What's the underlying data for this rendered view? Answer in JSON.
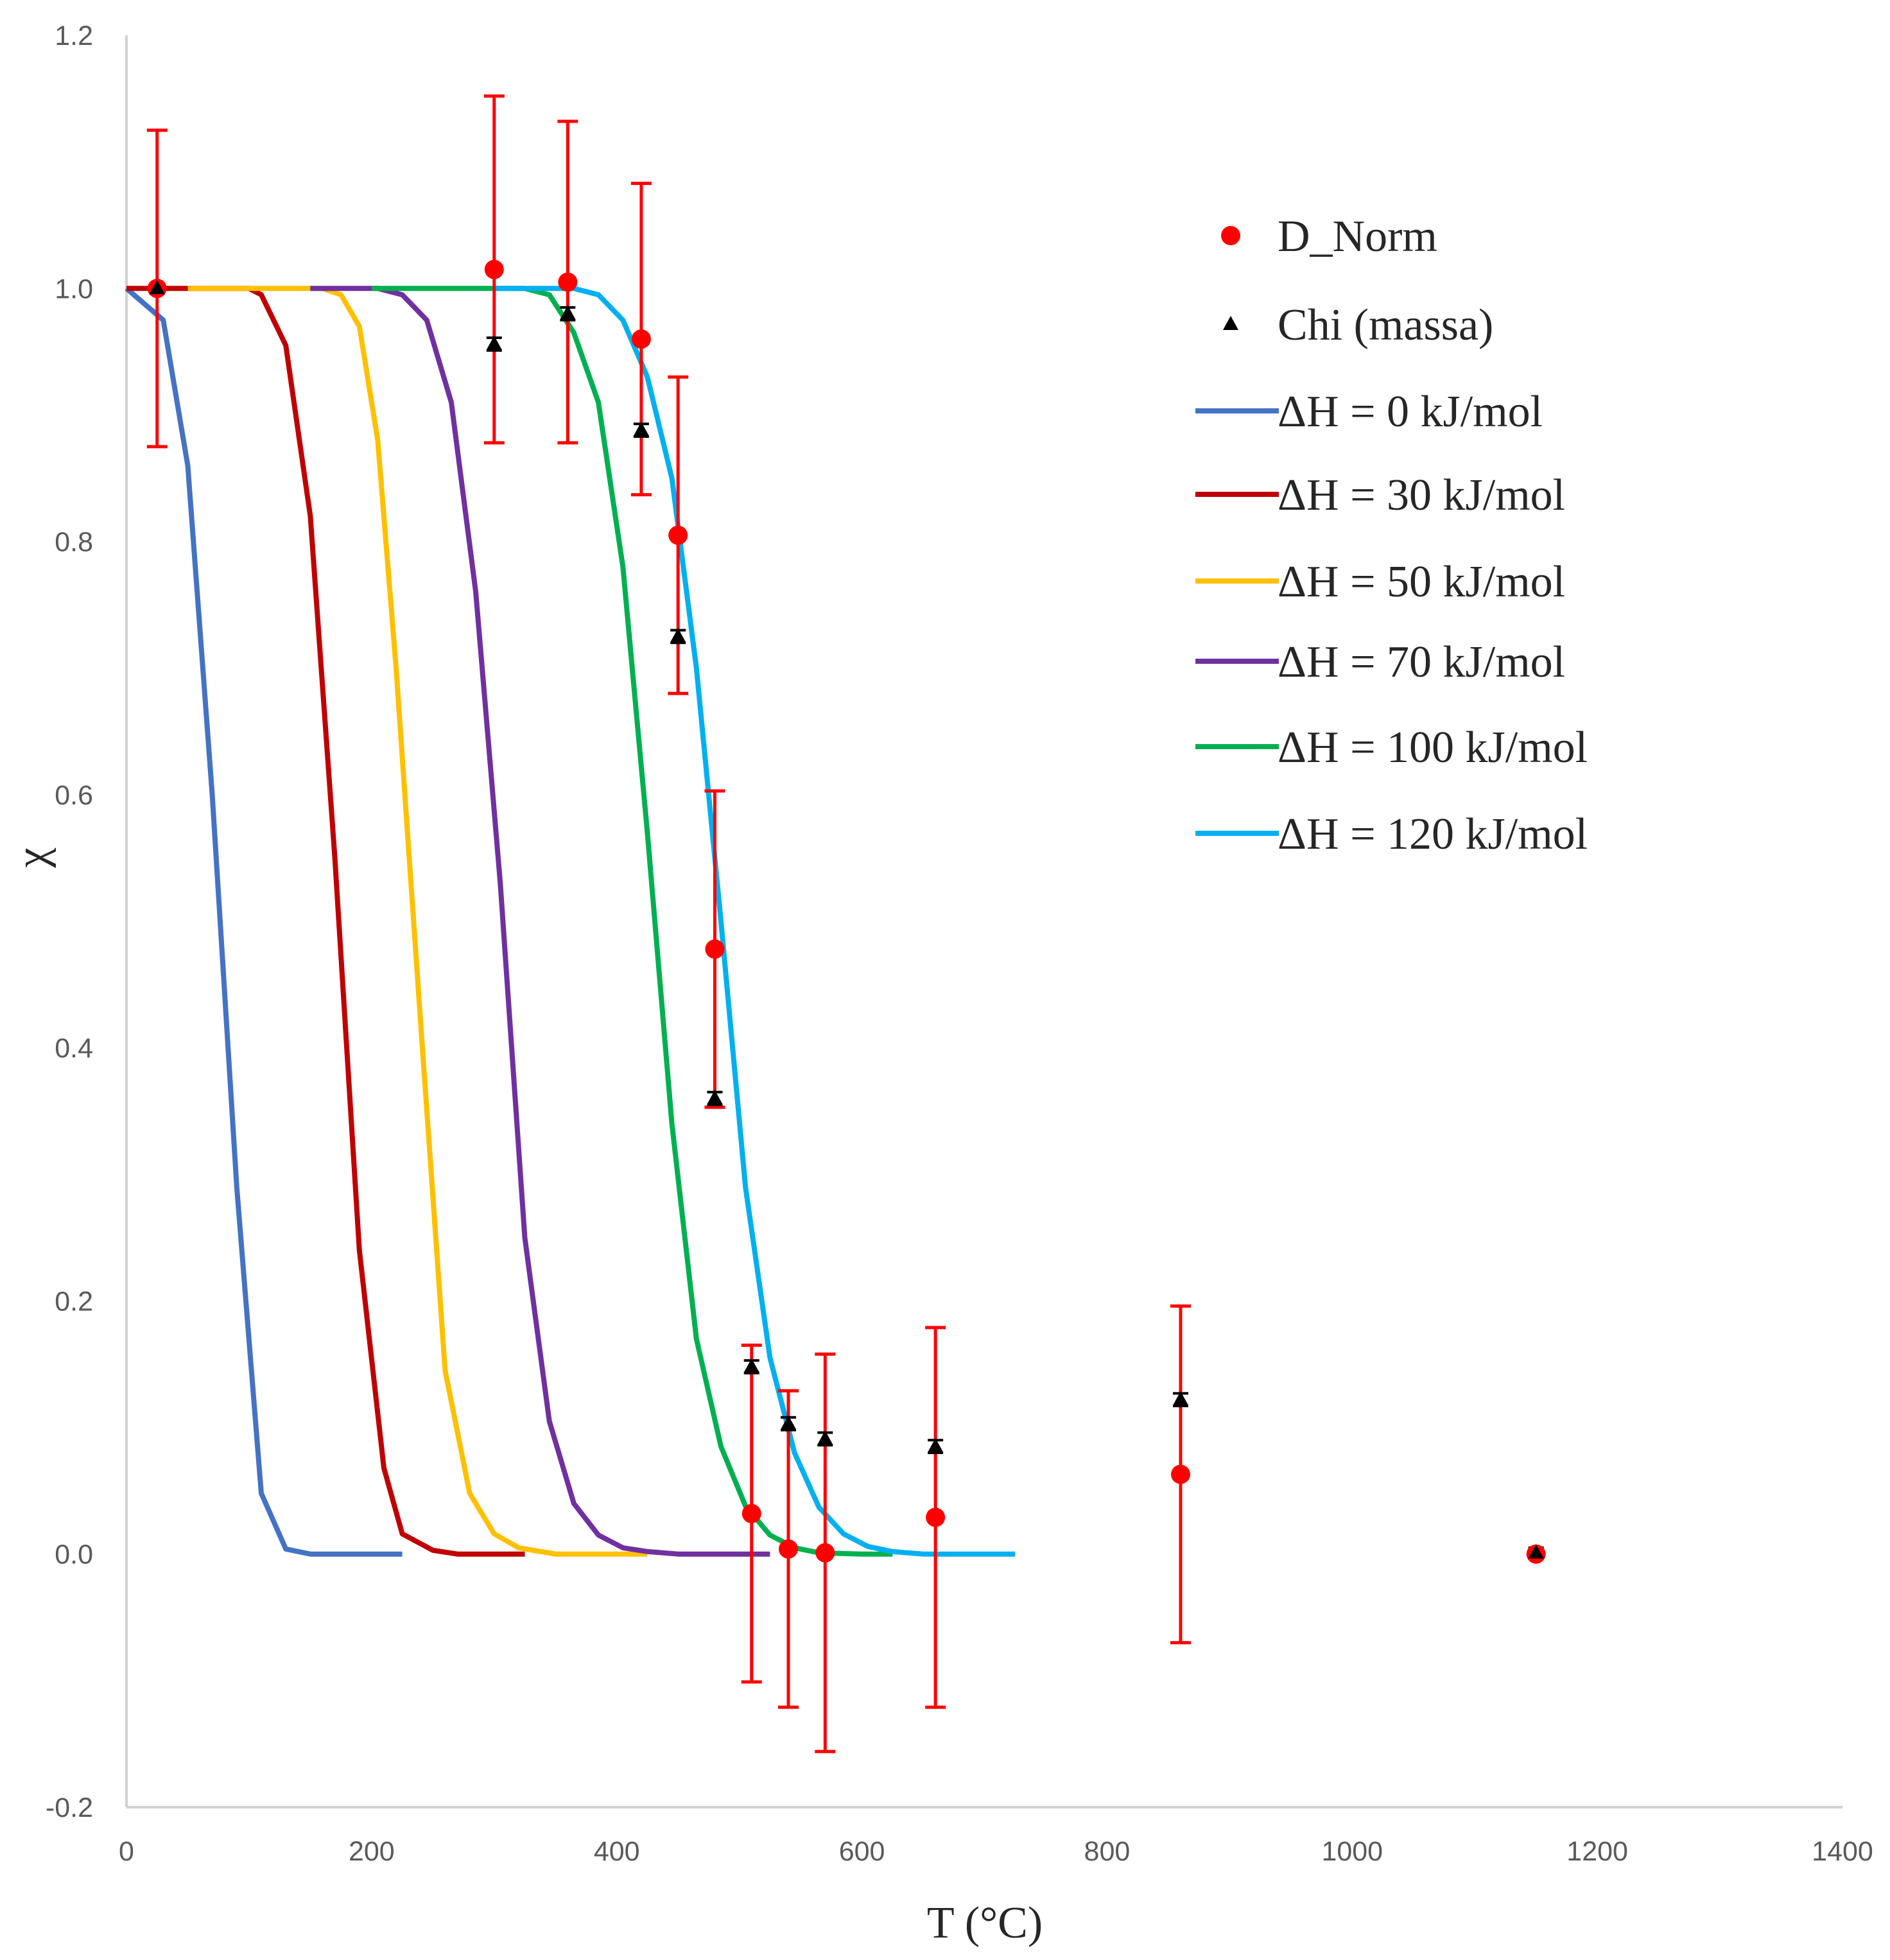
{
  "chart_data": {
    "type": "scatter",
    "title": "",
    "xlabel": "T (°C)",
    "ylabel": "χ",
    "xlim": [
      0,
      1400
    ],
    "ylim": [
      -0.2,
      1.2
    ],
    "xticks": [
      0,
      200,
      400,
      600,
      800,
      1000,
      1200,
      1400
    ],
    "xtick_labels": [
      "0",
      "200",
      "400",
      "600",
      "800",
      "1000",
      "1200",
      "1400"
    ],
    "yticks": [
      -0.2,
      0.0,
      0.2,
      0.4,
      0.6,
      0.8,
      1.0,
      1.2
    ],
    "ytick_labels": [
      "-0.2",
      "0.0",
      "0.2",
      "0.4",
      "0.6",
      "0.8",
      "1.0",
      "1.2"
    ],
    "grid": false,
    "legend_position": "right",
    "scatter_series": [
      {
        "name": "D_Norm",
        "marker": "circle",
        "color": "#ff0000",
        "points": [
          {
            "x": 25,
            "y": 1.0,
            "err": 0.125
          },
          {
            "x": 300,
            "y": 1.015,
            "err": 0.137
          },
          {
            "x": 360,
            "y": 1.005,
            "err": 0.127
          },
          {
            "x": 420,
            "y": 0.96,
            "err": 0.123
          },
          {
            "x": 450,
            "y": 0.805,
            "err": 0.125
          },
          {
            "x": 480,
            "y": 0.478,
            "err": 0.125
          },
          {
            "x": 510,
            "y": 0.032,
            "err": 0.133
          },
          {
            "x": 540,
            "y": 0.004,
            "err": 0.125
          },
          {
            "x": 570,
            "y": 0.001,
            "err": 0.157
          },
          {
            "x": 660,
            "y": 0.029,
            "err": 0.15
          },
          {
            "x": 860,
            "y": 0.063,
            "err": 0.133
          },
          {
            "x": 1150,
            "y": 0.0,
            "err": 0.0
          }
        ]
      },
      {
        "name": "Chi (massa)",
        "marker": "triangle",
        "color": "#000000",
        "points": [
          {
            "x": 25,
            "y": 1.0,
            "err": 0.004
          },
          {
            "x": 300,
            "y": 0.956,
            "err": 0.005
          },
          {
            "x": 360,
            "y": 0.98,
            "err": 0.005
          },
          {
            "x": 420,
            "y": 0.888,
            "err": 0.005
          },
          {
            "x": 450,
            "y": 0.725,
            "err": 0.005
          },
          {
            "x": 480,
            "y": 0.36,
            "err": 0.005
          },
          {
            "x": 510,
            "y": 0.148,
            "err": 0.005
          },
          {
            "x": 540,
            "y": 0.103,
            "err": 0.005
          },
          {
            "x": 570,
            "y": 0.091,
            "err": 0.005
          },
          {
            "x": 660,
            "y": 0.085,
            "err": 0.005
          },
          {
            "x": 860,
            "y": 0.122,
            "err": 0.005
          },
          {
            "x": 1150,
            "y": 0.001,
            "err": 0.004
          }
        ]
      }
    ],
    "line_series": [
      {
        "name": "ΔH = 0 kJ/mol",
        "color": "#4472c4",
        "x": [
          0,
          30,
          50,
          70,
          90,
          110,
          130,
          150,
          170,
          200,
          225
        ],
        "y": [
          1.0,
          0.975,
          0.86,
          0.6,
          0.29,
          0.048,
          0.004,
          0.0,
          0.0,
          0.0,
          0.0
        ]
      },
      {
        "name": "ΔH = 30 kJ/mol",
        "color": "#c00000",
        "x": [
          0,
          100,
          110,
          130,
          150,
          170,
          190,
          210,
          225,
          250,
          270,
          300,
          325
        ],
        "y": [
          1.0,
          1.0,
          0.995,
          0.955,
          0.82,
          0.55,
          0.24,
          0.068,
          0.016,
          0.003,
          0.0,
          0.0,
          0.0
        ]
      },
      {
        "name": "ΔH = 50 kJ/mol",
        "color": "#ffc000",
        "x": [
          50,
          160,
          175,
          190,
          205,
          220,
          240,
          260,
          280,
          300,
          320,
          350,
          400,
          425
        ],
        "y": [
          1.0,
          1.0,
          0.995,
          0.97,
          0.88,
          0.7,
          0.42,
          0.145,
          0.048,
          0.016,
          0.005,
          0.0,
          0.0,
          0.0
        ]
      },
      {
        "name": "ΔH = 70 kJ/mol",
        "color": "#7030a0",
        "x": [
          150,
          205,
          225,
          245,
          265,
          285,
          305,
          325,
          345,
          365,
          385,
          405,
          425,
          450,
          500,
          525
        ],
        "y": [
          1.0,
          1.0,
          0.995,
          0.975,
          0.91,
          0.76,
          0.53,
          0.25,
          0.105,
          0.04,
          0.015,
          0.005,
          0.002,
          0.0,
          0.0,
          0.0
        ]
      },
      {
        "name": "ΔH = 100 kJ/mol",
        "color": "#00b050",
        "x": [
          200,
          325,
          345,
          365,
          385,
          405,
          425,
          445,
          465,
          485,
          505,
          525,
          545,
          565,
          600,
          625
        ],
        "y": [
          1.0,
          1.0,
          0.995,
          0.965,
          0.91,
          0.78,
          0.57,
          0.34,
          0.17,
          0.085,
          0.038,
          0.015,
          0.005,
          0.001,
          0.0,
          0.0
        ]
      },
      {
        "name": "ΔH = 120 kJ/mol",
        "color": "#00b0f0",
        "x": [
          300,
          365,
          385,
          405,
          425,
          445,
          465,
          485,
          505,
          525,
          545,
          565,
          585,
          605,
          625,
          650,
          700,
          725
        ],
        "y": [
          1.0,
          1.0,
          0.995,
          0.975,
          0.93,
          0.85,
          0.7,
          0.5,
          0.29,
          0.155,
          0.08,
          0.037,
          0.016,
          0.006,
          0.002,
          0.0,
          0.0,
          0.0
        ]
      }
    ],
    "legend": [
      {
        "label": "D_Norm",
        "kind": "circle",
        "color": "#ff0000"
      },
      {
        "label": "Chi (massa)",
        "kind": "triangle",
        "color": "#000000"
      },
      {
        "label": "ΔH = 0 kJ/mol",
        "kind": "line",
        "color": "#4472c4"
      },
      {
        "label": "ΔH = 30 kJ/mol",
        "kind": "line",
        "color": "#c00000"
      },
      {
        "label": "ΔH = 50 kJ/mol",
        "kind": "line",
        "color": "#ffc000"
      },
      {
        "label": "ΔH = 70 kJ/mol",
        "kind": "line",
        "color": "#7030a0"
      },
      {
        "label": "ΔH = 100 kJ/mol",
        "kind": "line",
        "color": "#00b050"
      },
      {
        "label": "ΔH = 120 kJ/mol",
        "kind": "line",
        "color": "#00b0f0"
      }
    ]
  }
}
